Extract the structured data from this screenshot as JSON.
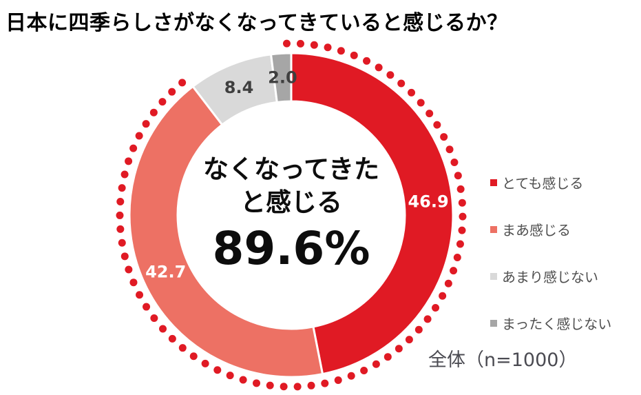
{
  "chart_data": {
    "type": "pie",
    "variant": "donut",
    "title": "日本に四季らしさがなくなってきていると感じるか？",
    "categories": [
      "とても感じる",
      "まあ感じる",
      "あまり感じない",
      "まったく感じない"
    ],
    "values": [
      46.9,
      42.7,
      8.4,
      2.0
    ],
    "segments": [
      {
        "label": "とても感じる",
        "value": 46.9,
        "value_text": "46.9",
        "color": "#e01a24",
        "value_label_color": "#ffffff"
      },
      {
        "label": "まあ感じる",
        "value": 42.7,
        "value_text": "42.7",
        "color": "#ed7164",
        "value_label_color": "#ffffff"
      },
      {
        "label": "あまり感じない",
        "value": 8.4,
        "value_text": "8.4",
        "color": "#d9d9d9",
        "value_label_color": "#3f3f3f"
      },
      {
        "label": "まったく感じない",
        "value": 2.0,
        "value_text": "2.0",
        "color": "#a6a6a6",
        "value_label_color": "#3f3f3f"
      }
    ],
    "start_angle_deg": 0,
    "direction": "clockwise",
    "legend_position": "right",
    "center_text": {
      "line1": "なくなってきた",
      "line2": "と感じる",
      "percent": "89.6%"
    },
    "highlight_arc": {
      "style": "dotted",
      "color": "#e01a24",
      "coverage_percent": 89.6,
      "covers": [
        "とても感じる",
        "まあ感じる"
      ]
    },
    "sample_label": "全体（n=1000）"
  },
  "colors": {
    "title_text": "#000000",
    "center_text": "#0d0d0d",
    "legend_text": "#4f4f4f",
    "sample_text": "#4b4b52",
    "background": "#ffffff"
  }
}
